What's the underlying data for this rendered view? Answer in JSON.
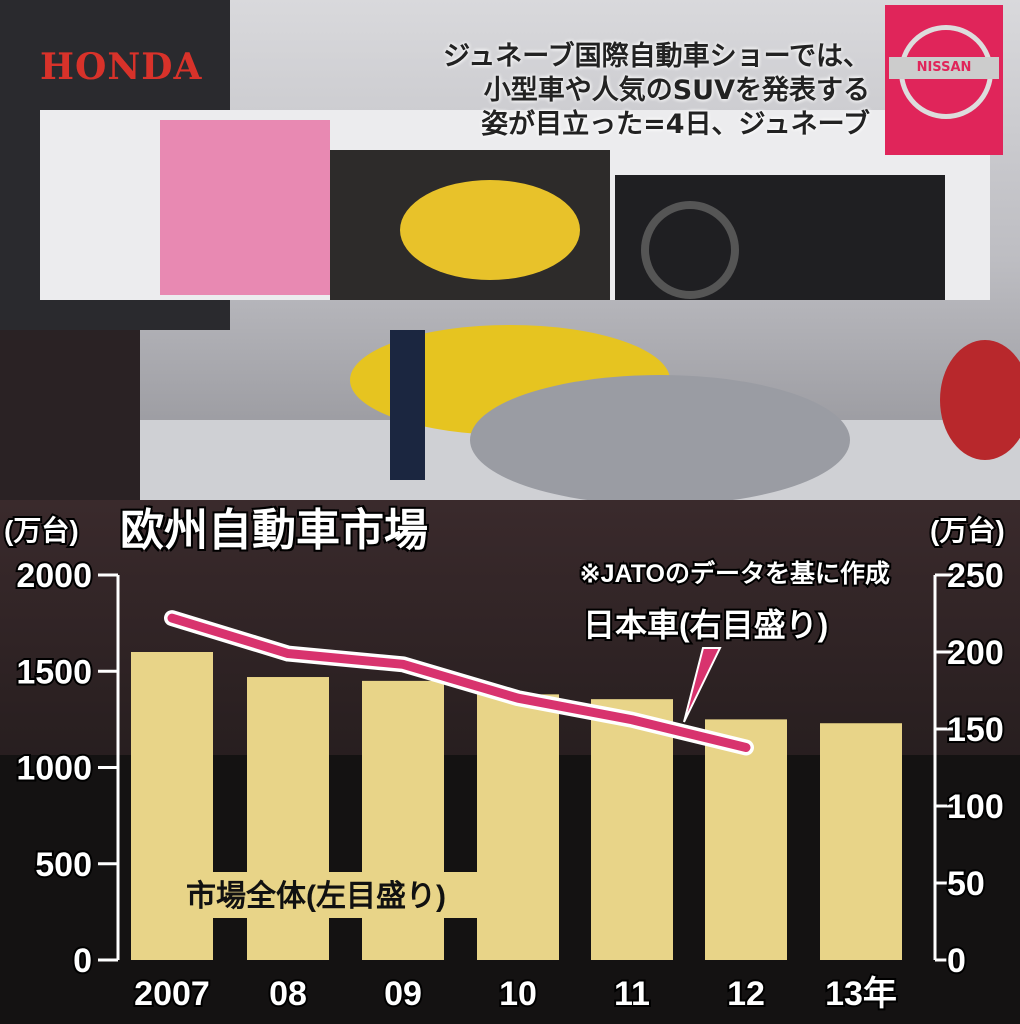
{
  "photo": {
    "caption": [
      "ジュネーブ国際自動車ショーでは、",
      "小型車や人気のSUVを発表する",
      "姿が目立った=4日、ジュネーブ"
    ],
    "logos": [
      "HONDA",
      "NISSAN"
    ]
  },
  "chart_data": {
    "type": "bar+line",
    "title": "欧州自動車市場",
    "source_note": "※JATOのデータを基に作成",
    "categories": [
      "2007",
      "08",
      "09",
      "10",
      "11",
      "12",
      "13年"
    ],
    "left_axis": {
      "unit": "(万台)",
      "range": [
        0,
        2000
      ],
      "ticks": [
        0,
        500,
        1000,
        1500,
        2000
      ]
    },
    "right_axis": {
      "unit": "(万台)",
      "range": [
        0,
        250
      ],
      "ticks": [
        0,
        50,
        100,
        150,
        200,
        250
      ]
    },
    "series": [
      {
        "name": "市場全体(左目盛り)",
        "type": "bar",
        "axis": "left",
        "color": "#e8d488",
        "values": [
          1600,
          1470,
          1450,
          1380,
          1355,
          1250,
          1230
        ]
      },
      {
        "name": "日本車(右目盛り)",
        "type": "line",
        "axis": "right",
        "color": "#d8336e",
        "values": [
          222,
          199,
          192,
          170,
          156,
          138,
          null
        ]
      }
    ]
  }
}
